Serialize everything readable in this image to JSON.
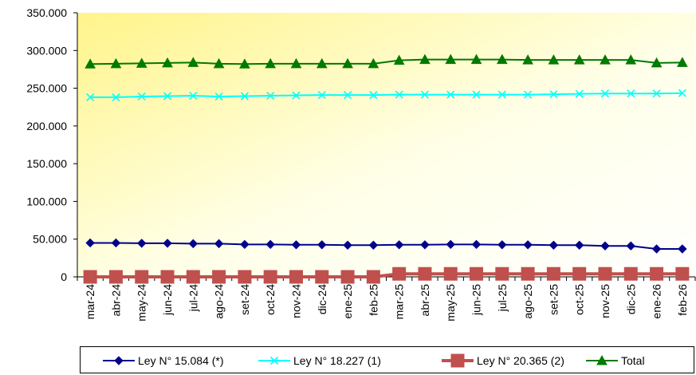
{
  "chart_data": {
    "type": "line",
    "title": "",
    "xlabel": "",
    "ylabel": "",
    "ylim": [
      0,
      350000
    ],
    "yticks": [
      "0",
      "50.000",
      "100.000",
      "150.000",
      "200.000",
      "250.000",
      "300.000",
      "350.000"
    ],
    "categories": [
      "mar-24",
      "abr-24",
      "may-24",
      "jun-24",
      "jul-24",
      "ago-24",
      "set-24",
      "oct-24",
      "nov-24",
      "dic-24",
      "ene-25",
      "feb-25",
      "mar-25",
      "abr-25",
      "may-25",
      "jun-25",
      "jul-25",
      "ago-25",
      "set-25",
      "oct-25",
      "nov-25",
      "dic-25",
      "ene-26",
      "feb-26"
    ],
    "grid": false,
    "legend_position": "bottom",
    "background": "gradient light yellow",
    "series": [
      {
        "name": "Ley N° 15.084 (*)",
        "color": "#00008B",
        "marker": "diamond",
        "values": [
          45000,
          45000,
          44500,
          44500,
          44000,
          44000,
          43000,
          43000,
          42500,
          42500,
          42000,
          42000,
          42500,
          42500,
          43000,
          43000,
          42500,
          42500,
          42000,
          42000,
          41000,
          41000,
          37000,
          37000
        ]
      },
      {
        "name": "Ley N° 18.227 (1)",
        "color": "#00FFFF",
        "marker": "x",
        "values": [
          238000,
          238000,
          239000,
          239500,
          240000,
          239000,
          239500,
          240000,
          240500,
          241000,
          241000,
          241000,
          241500,
          241500,
          241500,
          241500,
          241500,
          241500,
          242000,
          242500,
          243000,
          243000,
          243000,
          243500
        ]
      },
      {
        "name": "Ley N° 20.365 (2)",
        "color": "#C0504D",
        "marker": "square",
        "values": [
          0,
          0,
          0,
          0,
          0,
          0,
          0,
          0,
          0,
          0,
          0,
          0,
          4000,
          4000,
          4000,
          4000,
          4000,
          4000,
          4000,
          4000,
          4000,
          4000,
          4000,
          4000
        ]
      },
      {
        "name": "Total",
        "color": "#007A00",
        "marker": "triangle",
        "values": [
          282000,
          282500,
          283000,
          283500,
          284000,
          282500,
          282000,
          282500,
          282500,
          282500,
          282500,
          282500,
          287000,
          288000,
          288000,
          288000,
          288000,
          287500,
          287500,
          287500,
          287500,
          287500,
          283500,
          284000
        ]
      }
    ]
  }
}
